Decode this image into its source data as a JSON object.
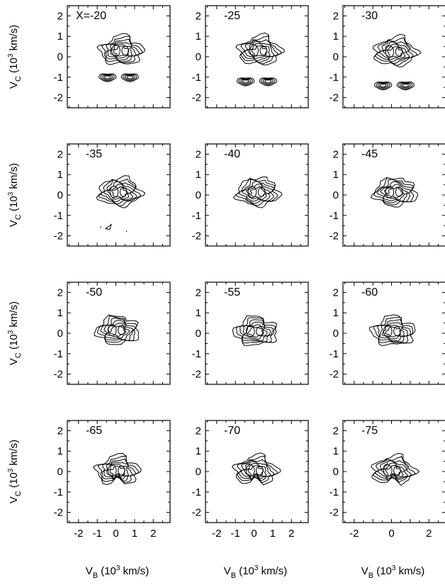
{
  "chart_data": {
    "type": "contour",
    "grid": {
      "rows": 4,
      "cols": 3
    },
    "xlim": [
      -2.6,
      2.9
    ],
    "ylim": [
      -2.5,
      2.5
    ],
    "xticks": [
      "-2",
      "-1",
      "0",
      "1",
      "2"
    ],
    "xticks_last_col": [
      "-2",
      "0",
      "2"
    ],
    "yticks": [
      "2",
      "1",
      "0",
      "-1",
      "-2"
    ],
    "ylabel": {
      "main": "V",
      "sub": "C",
      "unit_a": " (10",
      "exp": "3",
      "unit_b": " km/s)"
    },
    "xlabel": {
      "main": "V",
      "sub": "B",
      "unit_a": " (10",
      "exp": "3",
      "unit_b": " km/s)"
    },
    "panels": [
      {
        "label": "X=-20",
        "center": [
          0.3,
          0.25
        ],
        "lobes": true,
        "lobe_y": -1.0
      },
      {
        "label": "-25",
        "center": [
          0.3,
          0.25
        ],
        "lobes": true,
        "lobe_y": -1.2
      },
      {
        "label": "-30",
        "center": [
          0.2,
          0.2
        ],
        "lobes": true,
        "lobe_y": -1.4
      },
      {
        "label": "-35",
        "center": [
          0.2,
          0.1
        ],
        "lobes": false,
        "specks": true
      },
      {
        "label": "-40",
        "center": [
          0.2,
          0.1
        ],
        "lobes": false
      },
      {
        "label": "-45",
        "center": [
          0.2,
          0.1
        ],
        "lobes": false
      },
      {
        "label": "-50",
        "center": [
          0.1,
          0.1
        ],
        "lobes": false
      },
      {
        "label": "-55",
        "center": [
          0.1,
          0.05
        ],
        "lobes": false
      },
      {
        "label": "-60",
        "center": [
          0.1,
          0.05
        ],
        "lobes": false
      },
      {
        "label": "-65",
        "center": [
          0.1,
          0.0
        ],
        "lobes": false
      },
      {
        "label": "-70",
        "center": [
          0.1,
          0.0
        ],
        "lobes": false
      },
      {
        "label": "-75",
        "center": [
          0.1,
          0.0
        ],
        "lobes": false
      }
    ]
  }
}
